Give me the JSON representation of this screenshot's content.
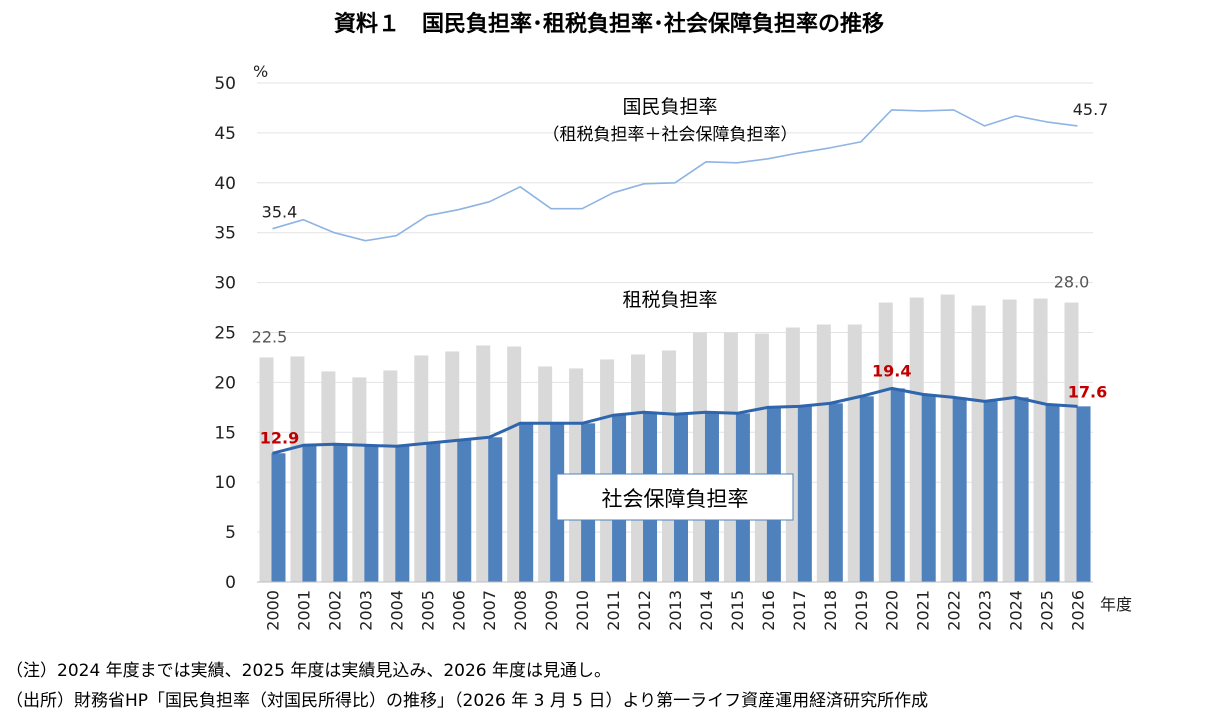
{
  "title": "資料１　国民負担率･租税負担率･社会保障負担率の推移",
  "notes": [
    "（注）2024 年度までは実績、2025 年度は実績見込み、2026 年度は見通し。",
    "（出所）財務省HP「国民負担率（対国民所得比）の推移」（2026 年 3 月 5 日）より第一ライフ資産運用経済研究所作成"
  ],
  "chart_data": {
    "type": "bar",
    "ylabel": "%",
    "xlabel": "年度",
    "ylim": [
      0,
      50
    ],
    "yticks": [
      0,
      5,
      10,
      15,
      20,
      25,
      30,
      35,
      40,
      45,
      50
    ],
    "grid": true,
    "categories": [
      "2000",
      "2001",
      "2002",
      "2003",
      "2004",
      "2005",
      "2006",
      "2007",
      "2008",
      "2009",
      "2010",
      "2011",
      "2012",
      "2013",
      "2014",
      "2015",
      "2016",
      "2017",
      "2018",
      "2019",
      "2020",
      "2021",
      "2022",
      "2023",
      "2024",
      "2025",
      "2026"
    ],
    "series": [
      {
        "name": "租税負担率",
        "kind": "bar",
        "color": "#d9d9d9",
        "values": [
          22.5,
          22.6,
          21.1,
          20.5,
          21.2,
          22.7,
          23.1,
          23.7,
          23.6,
          21.6,
          21.4,
          22.3,
          22.8,
          23.2,
          25.0,
          25.0,
          24.9,
          25.5,
          25.8,
          25.8,
          28.0,
          28.5,
          28.8,
          27.7,
          28.3,
          28.4,
          28.0
        ]
      },
      {
        "name": "社会保障負担率",
        "kind": "bar+line",
        "color": "#4f81bd",
        "line_color": "#2e65ac",
        "values": [
          12.9,
          13.7,
          13.8,
          13.7,
          13.6,
          13.9,
          14.2,
          14.5,
          15.9,
          15.9,
          15.9,
          16.7,
          17.0,
          16.8,
          17.0,
          16.9,
          17.5,
          17.6,
          17.9,
          18.6,
          19.4,
          18.8,
          18.5,
          18.1,
          18.5,
          17.8,
          17.6
        ]
      },
      {
        "name": "国民負担率",
        "kind": "line",
        "color": "#8fb4e3",
        "values": [
          35.4,
          36.3,
          35.0,
          34.2,
          34.7,
          36.7,
          37.3,
          38.1,
          39.6,
          37.4,
          37.4,
          39.0,
          39.9,
          40.0,
          42.1,
          42.0,
          42.4,
          43.0,
          43.5,
          44.1,
          47.3,
          47.2,
          47.3,
          45.7,
          46.7,
          46.1,
          45.7
        ]
      }
    ],
    "labels": {
      "national_name": "国民負担率",
      "national_sub": "（租税負担率＋社会保障負担率）",
      "tax_name": "租税負担率",
      "social_name": "社会保障負担率"
    },
    "data_labels": [
      {
        "series": "国民負担率",
        "index": 0,
        "text": "35.4",
        "color": "#222222"
      },
      {
        "series": "国民負担率",
        "index": 26,
        "text": "45.7",
        "color": "#222222"
      },
      {
        "series": "租税負担率",
        "index": 0,
        "text": "22.5",
        "color": "#555555"
      },
      {
        "series": "租税負担率",
        "index": 26,
        "text": "28.0",
        "color": "#555555"
      },
      {
        "series": "社会保障負担率",
        "index": 0,
        "text": "12.9",
        "color": "#c00000"
      },
      {
        "series": "社会保障負担率",
        "index": 20,
        "text": "19.4",
        "color": "#c00000"
      },
      {
        "series": "社会保障負担率",
        "index": 26,
        "text": "17.6",
        "color": "#c00000"
      }
    ]
  }
}
